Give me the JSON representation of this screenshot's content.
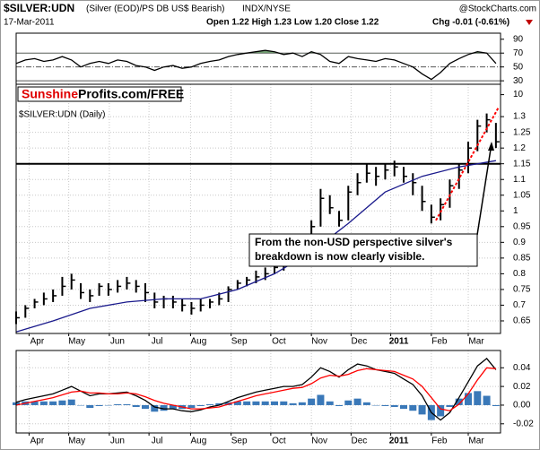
{
  "header": {
    "symbol": "$SILVER:UDN",
    "description": "(Silver (EOD)/PS DB US$ Bearish)",
    "exchange": "INDX/NYSE",
    "source": "@StockCharts.com",
    "date": "17-Mar-2011",
    "quote": "Open 1.22  High 1.23  Low 1.20  Close 1.22",
    "change": "Chg -0.01 (-0.61%)"
  },
  "chart_data": [
    {
      "type": "line",
      "xlim": [
        0,
        52.5
      ],
      "ylim": [
        25,
        98.75
      ],
      "yticks": [
        10,
        30,
        50,
        70,
        90
      ],
      "hlines": [
        70,
        50,
        30
      ],
      "overbought": 70,
      "fill_color": "#6f9a6f",
      "x": [
        0,
        1,
        2,
        3,
        4,
        5,
        6,
        7,
        8,
        9,
        10,
        11,
        12,
        13,
        14,
        15,
        16,
        17,
        18,
        19,
        20,
        21,
        22,
        23,
        24,
        25,
        26,
        27,
        28,
        29,
        30,
        31,
        32,
        33,
        34,
        35,
        36,
        37,
        38,
        39,
        40,
        41,
        42,
        43,
        44,
        45,
        46,
        47,
        48,
        49,
        50,
        51,
        52
      ],
      "series": [
        {
          "color": "#000000",
          "values": [
            55,
            60,
            62,
            58,
            60,
            65,
            60,
            50,
            55,
            58,
            55,
            60,
            58,
            52,
            50,
            45,
            50,
            52,
            48,
            50,
            55,
            58,
            60,
            65,
            68,
            70,
            72,
            74,
            72,
            68,
            70,
            65,
            72,
            68,
            58,
            55,
            65,
            62,
            60,
            58,
            62,
            60,
            55,
            50,
            40,
            32,
            42,
            55,
            62,
            68,
            72,
            70,
            55
          ]
        }
      ]
    },
    {
      "type": "ohlc",
      "label": "$SILVER:UDN (Daily)",
      "logo": [
        "Sunshine",
        "Profits.com/FREE"
      ],
      "xlim": [
        0,
        52.5
      ],
      "ylim": [
        0.61,
        1.403
      ],
      "yticks": [
        0.65,
        0.7,
        0.75,
        0.8,
        0.85,
        0.9,
        0.95,
        1.0,
        1.05,
        1.1,
        1.15,
        1.2,
        1.25,
        1.3
      ],
      "xticks": [
        {
          "value": 1.4,
          "label": "Apr"
        },
        {
          "value": 5.7,
          "label": "May"
        },
        {
          "value": 10.1,
          "label": "Jun"
        },
        {
          "value": 14.4,
          "label": "Jul"
        },
        {
          "value": 18.9,
          "label": "Aug"
        },
        {
          "value": 23.3,
          "label": "Sep"
        },
        {
          "value": 27.6,
          "label": "Oct"
        },
        {
          "value": 32,
          "label": "Nov"
        },
        {
          "value": 36.3,
          "label": "Dec"
        },
        {
          "value": 40.6,
          "label": "2011"
        },
        {
          "value": 45,
          "label": "Feb"
        },
        {
          "value": 49,
          "label": "Mar"
        }
      ],
      "grid": true,
      "hlines": [
        1.15
      ],
      "x": [
        0,
        1,
        2,
        3,
        4,
        5,
        6,
        7,
        8,
        9,
        10,
        11,
        12,
        13,
        14,
        15,
        16,
        17,
        18,
        19,
        20,
        21,
        22,
        23,
        24,
        25,
        26,
        27,
        28,
        29,
        30,
        31,
        32,
        33,
        34,
        35,
        36,
        37,
        38,
        39,
        40,
        41,
        42,
        43,
        44,
        45,
        46,
        47,
        48,
        49,
        50,
        51,
        52
      ],
      "series": [
        {
          "type": "ohlc",
          "color": "#000000",
          "high": [
            0.68,
            0.7,
            0.72,
            0.74,
            0.75,
            0.79,
            0.8,
            0.77,
            0.75,
            0.77,
            0.77,
            0.78,
            0.79,
            0.78,
            0.77,
            0.74,
            0.73,
            0.73,
            0.72,
            0.71,
            0.72,
            0.72,
            0.74,
            0.76,
            0.78,
            0.79,
            0.81,
            0.82,
            0.84,
            0.86,
            0.87,
            0.9,
            0.97,
            1.07,
            1.05,
            1.0,
            1.08,
            1.12,
            1.15,
            1.14,
            1.15,
            1.16,
            1.14,
            1.12,
            1.08,
            1.02,
            1.04,
            1.1,
            1.15,
            1.22,
            1.29,
            1.31,
            1.28
          ],
          "low": [
            0.64,
            0.66,
            0.69,
            0.7,
            0.71,
            0.73,
            0.75,
            0.72,
            0.71,
            0.73,
            0.73,
            0.74,
            0.75,
            0.74,
            0.71,
            0.69,
            0.69,
            0.69,
            0.68,
            0.67,
            0.68,
            0.69,
            0.7,
            0.71,
            0.75,
            0.76,
            0.77,
            0.78,
            0.8,
            0.81,
            0.83,
            0.85,
            0.87,
            0.95,
            0.99,
            0.95,
            0.97,
            1.05,
            1.09,
            1.08,
            1.1,
            1.11,
            1.09,
            1.05,
            1.0,
            0.96,
            0.97,
            1.01,
            1.07,
            1.12,
            1.19,
            1.25,
            1.2
          ],
          "close": [
            0.66,
            0.69,
            0.71,
            0.72,
            0.73,
            0.76,
            0.78,
            0.74,
            0.73,
            0.76,
            0.75,
            0.76,
            0.77,
            0.76,
            0.74,
            0.71,
            0.72,
            0.71,
            0.7,
            0.69,
            0.7,
            0.71,
            0.72,
            0.75,
            0.77,
            0.78,
            0.79,
            0.8,
            0.82,
            0.84,
            0.85,
            0.88,
            0.95,
            1.04,
            1.01,
            0.97,
            1.06,
            1.09,
            1.12,
            1.11,
            1.13,
            1.14,
            1.11,
            1.09,
            1.03,
            0.98,
            1.02,
            1.08,
            1.13,
            1.2,
            1.27,
            1.29,
            1.22
          ]
        },
        {
          "type": "line",
          "color": "#1a1a8c",
          "x": [
            0,
            4,
            8,
            12,
            16,
            20,
            24,
            28,
            32,
            36,
            40,
            44,
            48,
            52
          ],
          "values": [
            0.615,
            0.65,
            0.69,
            0.71,
            0.72,
            0.72,
            0.75,
            0.8,
            0.87,
            0.96,
            1.06,
            1.11,
            1.14,
            1.16
          ]
        },
        {
          "type": "line",
          "color": "#ff0000",
          "dash": true,
          "x": [
            45.5,
            52.3
          ],
          "values": [
            0.97,
            1.33
          ]
        }
      ],
      "annotation": [
        "From the non-USD perspective silver's",
        "breakdown is now clearly visible."
      ]
    },
    {
      "type": "macd",
      "xlim": [
        0,
        52.5
      ],
      "ylim": [
        -0.0298,
        0.0585
      ],
      "yticks": [
        {
          "value": 0.04,
          "label": "0.04"
        },
        {
          "value": 0.02,
          "label": "0.02"
        },
        {
          "value": 0,
          "label": "0.00"
        },
        {
          "value": -0.02,
          "label": "-0.02"
        }
      ],
      "xticks": [
        {
          "value": 1.4,
          "label": "Apr"
        },
        {
          "value": 5.7,
          "label": "May"
        },
        {
          "value": 10.1,
          "label": "Jun"
        },
        {
          "value": 14.4,
          "label": "Jul"
        },
        {
          "value": 18.9,
          "label": "Aug"
        },
        {
          "value": 23.3,
          "label": "Sep"
        },
        {
          "value": 27.6,
          "label": "Oct"
        },
        {
          "value": 32,
          "label": "Nov"
        },
        {
          "value": 36.3,
          "label": "Dec"
        },
        {
          "value": 40.6,
          "label": "2011"
        },
        {
          "value": 45,
          "label": "Feb"
        },
        {
          "value": 49,
          "label": "Mar"
        }
      ],
      "grid": true,
      "x": [
        0,
        1,
        2,
        3,
        4,
        5,
        6,
        7,
        8,
        9,
        10,
        11,
        12,
        13,
        14,
        15,
        16,
        17,
        18,
        19,
        20,
        21,
        22,
        23,
        24,
        25,
        26,
        27,
        28,
        29,
        30,
        31,
        32,
        33,
        34,
        35,
        36,
        37,
        38,
        39,
        40,
        41,
        42,
        43,
        44,
        45,
        46,
        47,
        48,
        49,
        50,
        51,
        52
      ],
      "series": [
        {
          "type": "bar",
          "color": "#3a78b8",
          "values": [
            0.003,
            0.004,
            0.004,
            0.004,
            0.004,
            0.005,
            0.006,
            0,
            -0.003,
            -0.001,
            0,
            0.001,
            0.001,
            -0.002,
            -0.004,
            -0.007,
            -0.006,
            -0.004,
            -0.004,
            -0.003,
            -0.001,
            0.001,
            0.002,
            0.003,
            0.004,
            0.004,
            0.004,
            0.004,
            0.004,
            0.004,
            0.002,
            0.003,
            0.007,
            0.011,
            0.004,
            -0.001,
            0.005,
            0.007,
            0.003,
            0,
            -0.001,
            -0.002,
            -0.004,
            -0.006,
            -0.01,
            -0.016,
            -0.012,
            -0.002,
            0.007,
            0.013,
            0.015,
            0.01,
            -0.001
          ]
        },
        {
          "type": "line",
          "color": "#000000",
          "values": [
            0.003,
            0.006,
            0.008,
            0.01,
            0.012,
            0.016,
            0.02,
            0.015,
            0.01,
            0.012,
            0.012,
            0.013,
            0.014,
            0.01,
            0.005,
            -0.002,
            -0.004,
            -0.004,
            -0.006,
            -0.007,
            -0.005,
            -0.002,
            0,
            0.004,
            0.008,
            0.011,
            0.014,
            0.016,
            0.018,
            0.02,
            0.02,
            0.022,
            0.03,
            0.04,
            0.036,
            0.03,
            0.038,
            0.044,
            0.042,
            0.038,
            0.036,
            0.034,
            0.028,
            0.022,
            0.01,
            -0.008,
            -0.016,
            -0.008,
            0.008,
            0.025,
            0.042,
            0.05,
            0.038
          ]
        },
        {
          "type": "line",
          "color": "#ff0000",
          "values": [
            0,
            0.002,
            0.004,
            0.006,
            0.008,
            0.011,
            0.014,
            0.015,
            0.013,
            0.013,
            0.012,
            0.012,
            0.013,
            0.012,
            0.009,
            0.005,
            0.002,
            0,
            -0.002,
            -0.004,
            -0.004,
            -0.003,
            -0.002,
            0.001,
            0.004,
            0.007,
            0.01,
            0.012,
            0.014,
            0.016,
            0.018,
            0.019,
            0.023,
            0.029,
            0.032,
            0.031,
            0.033,
            0.037,
            0.039,
            0.038,
            0.037,
            0.036,
            0.032,
            0.028,
            0.02,
            0.008,
            -0.004,
            -0.006,
            0.001,
            0.012,
            0.027,
            0.04,
            0.039
          ]
        }
      ]
    }
  ]
}
